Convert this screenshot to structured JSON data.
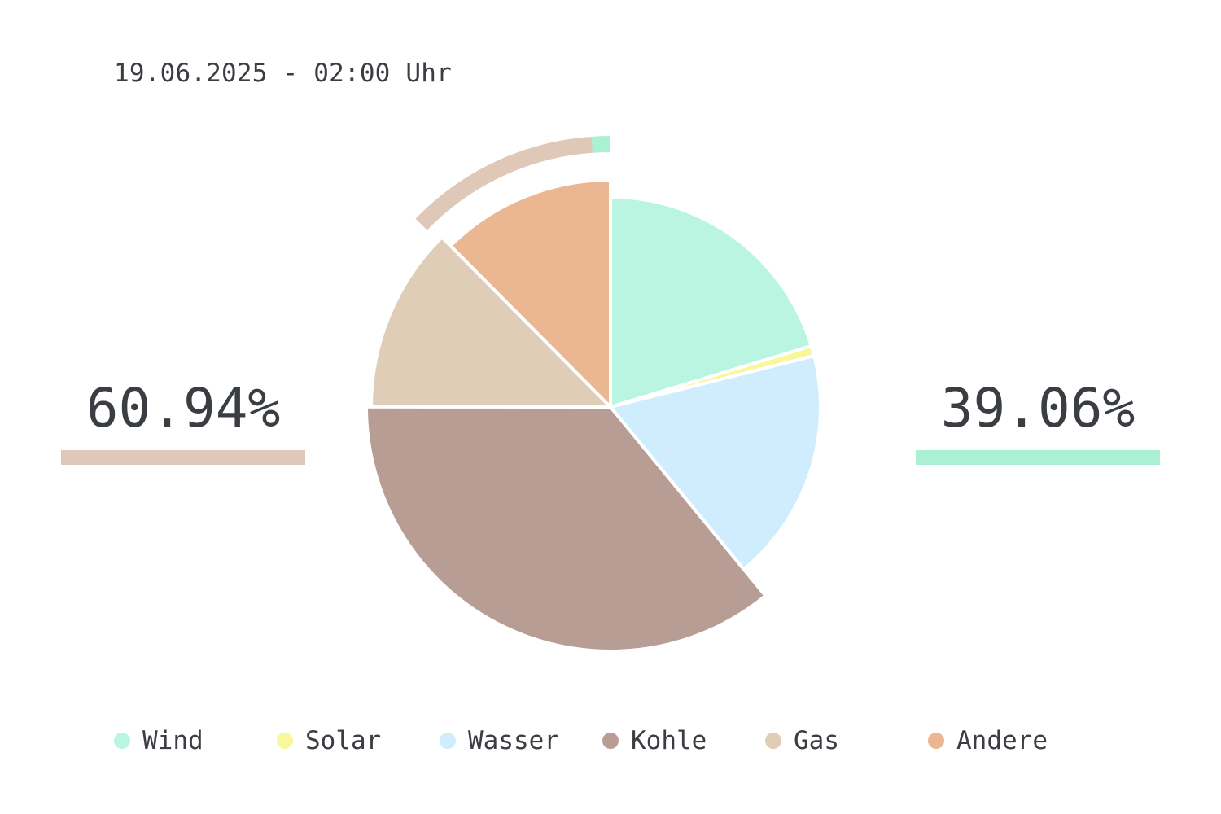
{
  "header": {
    "timestamp": "19.06.2025 - 02:00 Uhr"
  },
  "summary": {
    "left": {
      "text": "60.94%",
      "value": 60.94,
      "color": "#e0c8b8"
    },
    "right": {
      "text": "39.06%",
      "value": 39.06,
      "color": "#aaf0d4"
    }
  },
  "chart_data": {
    "type": "pie",
    "title": "19.06.2025 - 02:00 Uhr",
    "start_angle_deg": 0,
    "direction": "clockwise",
    "series": [
      {
        "name": "Wind",
        "value": 20.3,
        "color": "#baf5e2",
        "radius": 0.86
      },
      {
        "name": "Solar",
        "value": 0.78,
        "color": "#f8f79c",
        "radius": 0.86
      },
      {
        "name": "Wasser",
        "value": 17.98,
        "color": "#cfedfd",
        "radius": 0.86
      },
      {
        "name": "Kohle",
        "value": 35.96,
        "color": "#b89d94",
        "radius": 1.0
      },
      {
        "name": "Gas",
        "value": 12.54,
        "color": "#dfcdb7",
        "radius": 0.98
      },
      {
        "name": "Andere",
        "value": 12.44,
        "color": "#ebb793",
        "radius": 0.93
      }
    ],
    "outer_arc": {
      "renewable_share": 39.06,
      "fossil_share": 60.94,
      "renewable_color": "#aaf0d4",
      "fossil_color": "#e0c8b8"
    },
    "legend_position": "bottom"
  }
}
